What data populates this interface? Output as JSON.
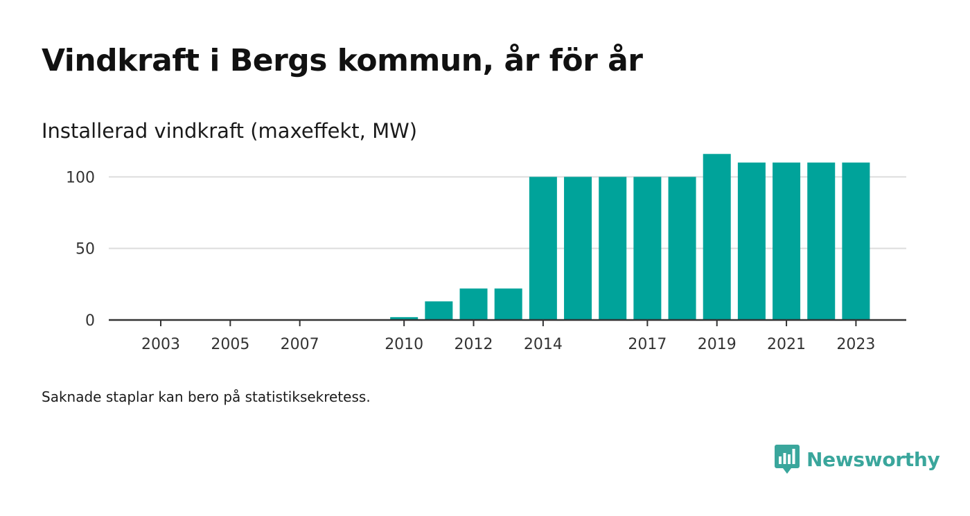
{
  "header": {
    "title": "Vindkraft i Bergs kommun, år för år",
    "subtitle": "Installerad vindkraft (maxeffekt, MW)"
  },
  "footer": {
    "note": "Saknade staplar kan bero på statistiksekretess.",
    "brand": "Newsworthy"
  },
  "colors": {
    "bar": "#00a39a",
    "brand": "#3aa69c",
    "grid": "#dddddd",
    "axis": "#333333"
  },
  "chart_data": {
    "type": "bar",
    "categories": [
      "2003",
      "2004",
      "2005",
      "2006",
      "2007",
      "2008",
      "2009",
      "2010",
      "2011",
      "2012",
      "2013",
      "2014",
      "2015",
      "2016",
      "2017",
      "2018",
      "2019",
      "2020",
      "2021",
      "2022",
      "2023"
    ],
    "values": [
      0,
      0,
      0,
      0,
      0,
      null,
      null,
      2,
      13,
      22,
      22,
      100,
      100,
      100,
      100,
      100,
      116,
      110,
      110,
      110,
      110
    ],
    "x_tick_labels": [
      "2003",
      "2005",
      "2007",
      "2010",
      "2012",
      "2014",
      "2017",
      "2019",
      "2021",
      "2023"
    ],
    "y_ticks": [
      0,
      50,
      100
    ],
    "ylim": [
      0,
      120
    ],
    "grid": true,
    "xlabel": "",
    "ylabel": ""
  }
}
